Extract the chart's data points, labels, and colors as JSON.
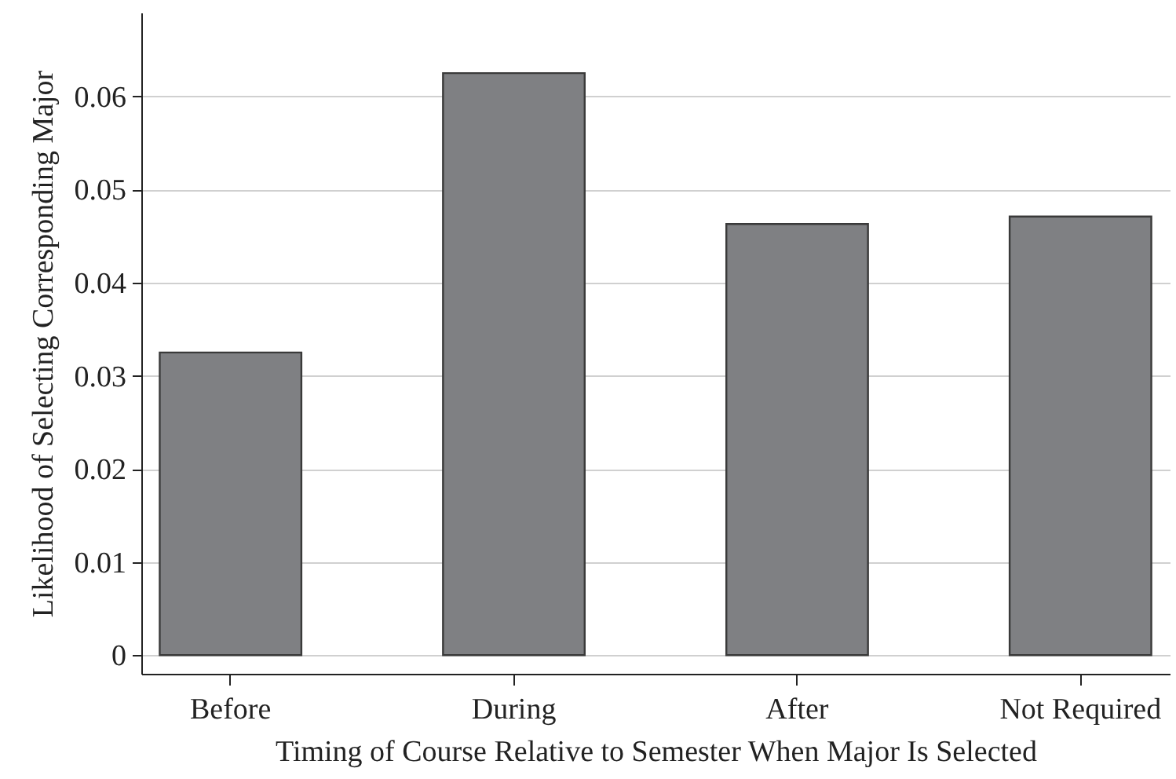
{
  "chart_data": {
    "type": "bar",
    "xlabel": "Timing of Course Relative to Semester When Major Is Selected",
    "ylabel": "Likelihood of Selecting Corresponding Major",
    "categories": [
      "Before",
      "During",
      "After",
      "Not Required"
    ],
    "values": [
      0.0325,
      0.0625,
      0.0463,
      0.0471
    ],
    "color": "#7f8083",
    "ylim": [
      -0.002,
      0.069
    ],
    "yticks": [
      0,
      0.01,
      0.02,
      0.03,
      0.04,
      0.05,
      0.06
    ],
    "grid": "y"
  }
}
